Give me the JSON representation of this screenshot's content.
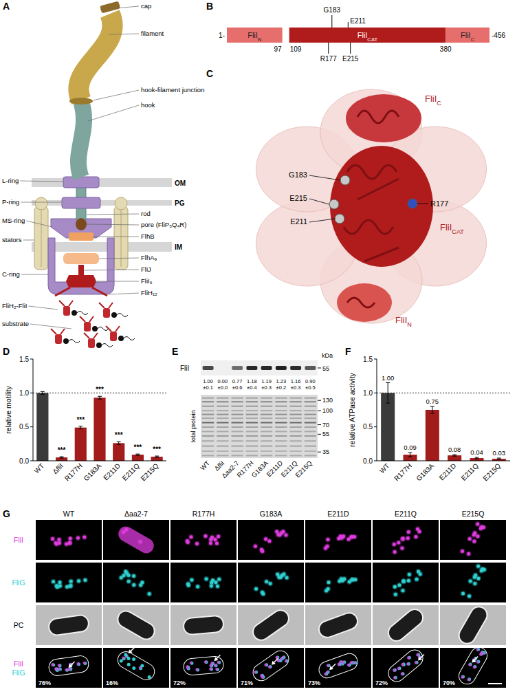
{
  "panel_letters": [
    "A",
    "B",
    "C",
    "D",
    "E",
    "F",
    "G"
  ],
  "panel_a": {
    "labels_right": [
      "cap",
      "filament",
      "hook-filament junction",
      "hook",
      "rod",
      "pore (FliP₅Q₄R)",
      "FlhB",
      "FlhA₉",
      "FliJ",
      "FliI₆",
      "FliH₁₂"
    ],
    "labels_left": [
      "L-ring",
      "P-ring",
      "MS-ring",
      "stators",
      "C-ring",
      "FliH₂-FliI",
      "substrate"
    ],
    "membranes": [
      "OM",
      "PG",
      "IM"
    ]
  },
  "panel_b": {
    "start": {
      "value": 1,
      "label": "1-"
    },
    "end": {
      "value": 456,
      "label": "-456"
    },
    "domains": [
      {
        "name": "FliI",
        "subscript": "N",
        "from": 1,
        "to": 97,
        "color": "#e66e6c"
      },
      {
        "name": "FliI",
        "subscript": "CAT",
        "from": 109,
        "to": 380,
        "color": "#b01c1c"
      },
      {
        "name": "FliI",
        "subscript": "C",
        "from": 380,
        "to": 456,
        "color": "#e66e6c"
      }
    ],
    "boundaries": [
      97,
      109,
      380
    ],
    "mutations_above": [
      {
        "label": "G183",
        "position": 183
      },
      {
        "label": "E211",
        "position": 211
      }
    ],
    "mutations_below": [
      {
        "label": "R177",
        "position": 177
      },
      {
        "label": "E215",
        "position": 215
      }
    ]
  },
  "panel_c": {
    "domain_labels": [
      {
        "name": "FliI",
        "subscript": "C"
      },
      {
        "name": "FliI",
        "subscript": "CAT"
      },
      {
        "name": "FliI",
        "subscript": "N"
      }
    ],
    "residue_labels": [
      "G183",
      "E215",
      "E211",
      "R177"
    ]
  },
  "chart_data": [
    {
      "type": "bar",
      "y_label": "relative motility",
      "categories": [
        "WT",
        "ΔfliI",
        "R177H",
        "G183A",
        "E211D",
        "E211Q",
        "E215Q"
      ],
      "values": [
        1.0,
        0.05,
        0.49,
        0.93,
        0.26,
        0.09,
        0.06
      ],
      "errors": [
        0.02,
        0.01,
        0.02,
        0.02,
        0.02,
        0.01,
        0.01
      ],
      "colors": [
        "#3b3b3b",
        "#a31c1c",
        "#a31c1c",
        "#a31c1c",
        "#a31c1c",
        "#a31c1c",
        "#a31c1c"
      ],
      "ylim": [
        0,
        1.5
      ],
      "yticks": [
        {
          "value": 0,
          "label": "0.0"
        },
        {
          "value": 0.5,
          "label": "0.5"
        },
        {
          "value": 1,
          "label": "1.0"
        },
        {
          "value": 1.5,
          "label": "1.5"
        }
      ],
      "annotations": [
        null,
        "***",
        "***",
        "***",
        "***",
        "***",
        "***"
      ]
    },
    {
      "type": "bar",
      "y_label": "relative ATPase activity",
      "categories": [
        "WT",
        "R177H",
        "G183A",
        "E211D",
        "E211Q",
        "E215Q"
      ],
      "values": [
        1.0,
        0.09,
        0.75,
        0.08,
        0.04,
        0.03
      ],
      "value_labels": [
        "1.00",
        "0.09",
        "0.75",
        "0.08",
        "0.04",
        "0.03"
      ],
      "data_labels": true,
      "errors": [
        0.15,
        0.03,
        0.05,
        0.01,
        0.01,
        0.01
      ],
      "colors": [
        "#3b3b3b",
        "#a31c1c",
        "#a31c1c",
        "#a31c1c",
        "#a31c1c",
        "#a31c1c"
      ],
      "ylim": [
        0,
        1.5
      ],
      "yticks": [
        {
          "value": 0,
          "label": "0.0"
        },
        {
          "value": 0.5,
          "label": "0.5"
        },
        {
          "value": 1,
          "label": "1.0"
        },
        {
          "value": 1.5,
          "label": "1.5"
        }
      ]
    }
  ],
  "panel_e": {
    "blot_label": "FliI",
    "unit": "kDa",
    "blot_marker": 55,
    "lanes": [
      "WT",
      "ΔfliI",
      "Δaa2-7",
      "R177H",
      "G183A",
      "E211D",
      "E211Q",
      "E215Q"
    ],
    "quantification": [
      {
        "value": 1.0,
        "label": "1.00",
        "error": 0.1,
        "error_label": "±0.1"
      },
      {
        "value": 0,
        "label": "0.00",
        "error": 0,
        "error_label": "±0.0"
      },
      {
        "value": 0.77,
        "label": "0.77",
        "error": 0.6,
        "error_label": "±0.6"
      },
      {
        "value": 1.18,
        "label": "1.18",
        "error": 0.4,
        "error_label": "±0.4"
      },
      {
        "value": 1.19,
        "label": "1.19",
        "error": 0.3,
        "error_label": "±0.3"
      },
      {
        "value": 1.23,
        "label": "1.23",
        "error": 0.2,
        "error_label": "±0.2"
      },
      {
        "value": 1.16,
        "label": "1.16",
        "error": 0.3,
        "error_label": "±0.3"
      },
      {
        "value": 0.9,
        "label": "0.90",
        "error": 0.5,
        "error_label": "±0.5"
      }
    ],
    "total_protein_label": "total protein",
    "markers": [
      130,
      100,
      70,
      55,
      35
    ]
  },
  "panel_g": {
    "columns": [
      "WT",
      "Δaa2-7",
      "R177H",
      "G183A",
      "E211D",
      "E211Q",
      "E215Q"
    ],
    "channels": [
      {
        "label": "FliI",
        "color": "#df3bdf"
      },
      {
        "label": "FliG",
        "color": "#2fcfcf"
      },
      {
        "label": "PC",
        "color": "#000000"
      }
    ],
    "colocalization": [
      {
        "value": 76,
        "label": "76%"
      },
      {
        "value": 16,
        "label": "16%"
      },
      {
        "value": 72,
        "label": "72%"
      },
      {
        "value": 71,
        "label": "71%"
      },
      {
        "value": 73,
        "label": "73%"
      },
      {
        "value": 72,
        "label": "72%"
      },
      {
        "value": 70,
        "label": "70%"
      }
    ]
  }
}
